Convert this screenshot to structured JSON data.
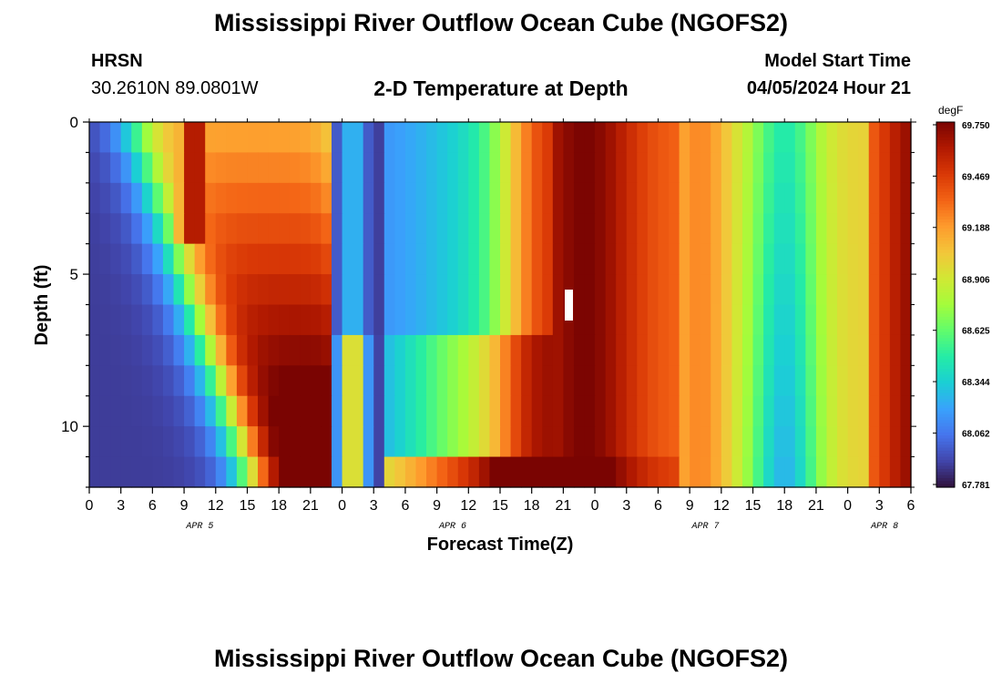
{
  "header": {
    "title": "Mississippi River Outflow Ocean Cube (NGOFS2)",
    "station": "HRSN",
    "coords": "30.2610N  89.0801W",
    "subtitle": "2-D Temperature at Depth",
    "model_start_label": "Model Start Time",
    "model_start_value": "04/05/2024 Hour 21"
  },
  "footer": {
    "title": "Mississippi River Outflow Ocean Cube (NGOFS2)"
  },
  "colors": {
    "scale": [
      "#30123b",
      "#4145ab",
      "#4675ed",
      "#39a2fc",
      "#1bcfd4",
      "#24eca6",
      "#61fc6c",
      "#a4fc3b",
      "#d1e834",
      "#f3c63a",
      "#fe9b2d",
      "#f36315",
      "#d93806",
      "#b11901",
      "#7a0402"
    ]
  },
  "chart_data": {
    "type": "heatmap",
    "xlabel": "Forecast Time(Z)",
    "ylabel": "Depth (ft)",
    "ylim": [
      0,
      12
    ],
    "y_ticks": [
      0,
      5,
      10
    ],
    "x_ticks": [
      "0",
      "3",
      "6",
      "9",
      "12",
      "15",
      "18",
      "21",
      "0",
      "3",
      "6",
      "9",
      "12",
      "15",
      "18",
      "21",
      "0",
      "3",
      "6",
      "9",
      "12",
      "15",
      "18",
      "21",
      "0",
      "3",
      "6"
    ],
    "date_labels": [
      {
        "label": "APR 5",
        "hour": 10.5
      },
      {
        "label": "APR 6",
        "hour": 34.5
      },
      {
        "label": "APR 7",
        "hour": 58.5
      },
      {
        "label": "APR 8",
        "hour": 75.5
      }
    ],
    "time_range_hours": [
      0,
      78
    ],
    "colorbar": {
      "unit": "degF",
      "ticks": [
        "69.750",
        "69.469",
        "69.188",
        "68.906",
        "68.625",
        "68.344",
        "68.062",
        "67.781"
      ],
      "range": [
        67.781,
        69.75
      ]
    },
    "value_range": [
      67.781,
      69.75
    ]
  }
}
